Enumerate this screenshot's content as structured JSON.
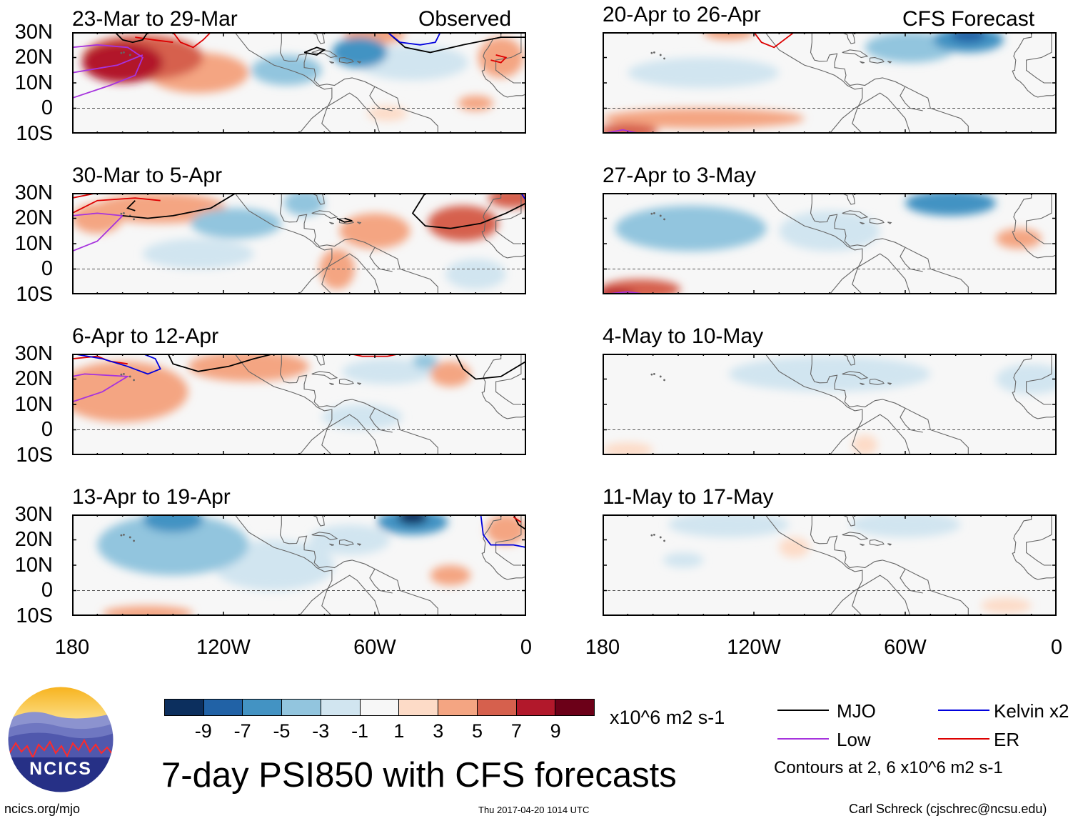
{
  "header": {
    "observed_label": "Observed",
    "forecast_label": "CFS Forecast"
  },
  "lat_labels": [
    "30N",
    "20N",
    "10N",
    "0",
    "10S"
  ],
  "lon_labels": [
    "180",
    "120W",
    "60W",
    "0"
  ],
  "panels": [
    {
      "title": "23-Mar to 29-Mar",
      "type": "observed",
      "anomalies": [
        {
          "lon": -152,
          "lat": 20,
          "sx": 24,
          "sy": 9,
          "v": 5
        },
        {
          "lon": -160,
          "lat": 18,
          "sx": 16,
          "sy": 8,
          "v": 7
        },
        {
          "lon": -130,
          "lat": 14,
          "sx": 20,
          "sy": 8,
          "v": 3
        },
        {
          "lon": -95,
          "lat": 15,
          "sx": 14,
          "sy": 6,
          "v": -3
        },
        {
          "lon": -66,
          "lat": 22,
          "sx": 11,
          "sy": 6,
          "v": -5
        },
        {
          "lon": -45,
          "lat": 18,
          "sx": 22,
          "sy": 7,
          "v": -1
        },
        {
          "lon": -60,
          "lat": 29,
          "sx": 12,
          "sy": 4,
          "v": 3
        },
        {
          "lon": -10,
          "lat": 20,
          "sx": 9,
          "sy": 8,
          "v": 3
        },
        {
          "lon": -20,
          "lat": 2,
          "sx": 7,
          "sy": 3,
          "v": 3
        },
        {
          "lon": -55,
          "lat": -2,
          "sx": 8,
          "sy": 3,
          "v": 1.5
        }
      ]
    },
    {
      "title": "30-Mar to 5-Apr",
      "type": "observed",
      "anomalies": [
        {
          "lon": -145,
          "lat": 24,
          "sx": 26,
          "sy": 6,
          "v": 3
        },
        {
          "lon": -170,
          "lat": 20,
          "sx": 10,
          "sy": 6,
          "v": 3
        },
        {
          "lon": -115,
          "lat": 18,
          "sx": 18,
          "sy": 6,
          "v": -3
        },
        {
          "lon": -130,
          "lat": 6,
          "sx": 22,
          "sy": 6,
          "v": -1
        },
        {
          "lon": -60,
          "lat": 15,
          "sx": 14,
          "sy": 7,
          "v": 3
        },
        {
          "lon": -25,
          "lat": 18,
          "sx": 14,
          "sy": 7,
          "v": 5
        },
        {
          "lon": -88,
          "lat": 26,
          "sx": 8,
          "sy": 5,
          "v": -3
        },
        {
          "lon": -75,
          "lat": 0,
          "sx": 7,
          "sy": 8,
          "v": 3
        },
        {
          "lon": -20,
          "lat": -2,
          "sx": 12,
          "sy": 6,
          "v": -1
        },
        {
          "lon": -5,
          "lat": 28,
          "sx": 10,
          "sy": 4,
          "v": 5
        }
      ]
    },
    {
      "title": "6-Apr to 12-Apr",
      "type": "observed",
      "anomalies": [
        {
          "lon": -160,
          "lat": 15,
          "sx": 26,
          "sy": 12,
          "v": 3
        },
        {
          "lon": -110,
          "lat": 25,
          "sx": 24,
          "sy": 6,
          "v": 3
        },
        {
          "lon": -30,
          "lat": 22,
          "sx": 8,
          "sy": 5,
          "v": 3
        },
        {
          "lon": -55,
          "lat": 23,
          "sx": 18,
          "sy": 5,
          "v": -1
        },
        {
          "lon": -65,
          "lat": 5,
          "sx": 16,
          "sy": 5,
          "v": -1
        },
        {
          "lon": -40,
          "lat": 27,
          "sx": 5,
          "sy": 3,
          "v": -3
        }
      ]
    },
    {
      "title": "13-Apr to 19-Apr",
      "type": "observed",
      "anomalies": [
        {
          "lon": -140,
          "lat": 18,
          "sx": 30,
          "sy": 12,
          "v": -3
        },
        {
          "lon": -140,
          "lat": 28,
          "sx": 12,
          "sy": 5,
          "v": -6
        },
        {
          "lon": -45,
          "lat": 27,
          "sx": 14,
          "sy": 5,
          "v": -6
        },
        {
          "lon": -45,
          "lat": 29,
          "sx": 6,
          "sy": 3,
          "v": -9
        },
        {
          "lon": -100,
          "lat": 10,
          "sx": 24,
          "sy": 10,
          "v": -1
        },
        {
          "lon": -70,
          "lat": 20,
          "sx": 16,
          "sy": 6,
          "v": -1
        },
        {
          "lon": -8,
          "lat": 24,
          "sx": 8,
          "sy": 6,
          "v": 3
        },
        {
          "lon": -30,
          "lat": 6,
          "sx": 8,
          "sy": 4,
          "v": 3
        },
        {
          "lon": -150,
          "lat": -9,
          "sx": 18,
          "sy": 3,
          "v": 3
        }
      ]
    },
    {
      "title": "20-Apr to 26-Apr",
      "type": "forecast",
      "anomalies": [
        {
          "lon": -58,
          "lat": 24,
          "sx": 18,
          "sy": 6,
          "v": -3
        },
        {
          "lon": -35,
          "lat": 27,
          "sx": 14,
          "sy": 5,
          "v": -5
        },
        {
          "lon": -35,
          "lat": 29,
          "sx": 7,
          "sy": 3,
          "v": -8
        },
        {
          "lon": -140,
          "lat": 14,
          "sx": 30,
          "sy": 6,
          "v": -1
        },
        {
          "lon": -140,
          "lat": -4,
          "sx": 40,
          "sy": 4,
          "v": 3
        },
        {
          "lon": -170,
          "lat": -9,
          "sx": 12,
          "sy": 3,
          "v": 5
        },
        {
          "lon": -130,
          "lat": 30,
          "sx": 10,
          "sy": 3,
          "v": 3
        }
      ]
    },
    {
      "title": "27-Apr to 3-May",
      "type": "forecast",
      "anomalies": [
        {
          "lon": -145,
          "lat": 16,
          "sx": 30,
          "sy": 9,
          "v": -3
        },
        {
          "lon": -42,
          "lat": 26,
          "sx": 18,
          "sy": 5,
          "v": -5
        },
        {
          "lon": -90,
          "lat": 15,
          "sx": 20,
          "sy": 8,
          "v": -1
        },
        {
          "lon": -165,
          "lat": -8,
          "sx": 16,
          "sy": 4,
          "v": 5
        },
        {
          "lon": -175,
          "lat": -10,
          "sx": 8,
          "sy": 2,
          "v": 8
        },
        {
          "lon": -15,
          "lat": 12,
          "sx": 9,
          "sy": 4,
          "v": 3
        }
      ]
    },
    {
      "title": "4-May to 10-May",
      "type": "forecast",
      "anomalies": [
        {
          "lon": -90,
          "lat": 22,
          "sx": 40,
          "sy": 7,
          "v": -1
        },
        {
          "lon": -10,
          "lat": 20,
          "sx": 14,
          "sy": 6,
          "v": -1
        },
        {
          "lon": -170,
          "lat": -8,
          "sx": 10,
          "sy": 3,
          "v": 1.5
        },
        {
          "lon": -76,
          "lat": -6,
          "sx": 5,
          "sy": 4,
          "v": 1.5
        }
      ]
    },
    {
      "title": "11-May to 17-May",
      "type": "forecast",
      "anomalies": [
        {
          "lon": -60,
          "lat": 26,
          "sx": 22,
          "sy": 5,
          "v": -1
        },
        {
          "lon": -130,
          "lat": 26,
          "sx": 24,
          "sy": 5,
          "v": -1
        },
        {
          "lon": -148,
          "lat": 12,
          "sx": 8,
          "sy": 3,
          "v": -1
        },
        {
          "lon": -104,
          "lat": 17,
          "sx": 6,
          "sy": 4,
          "v": 1.5
        },
        {
          "lon": -20,
          "lat": -6,
          "sx": 10,
          "sy": 3,
          "v": 1.5
        }
      ]
    }
  ],
  "colorbar": {
    "colors": [
      "#0c2f5e",
      "#2162a6",
      "#4393c3",
      "#92c5de",
      "#d1e5f0",
      "#f7f7f7",
      "#fddbc7",
      "#f4a582",
      "#d6604d",
      "#b2182b",
      "#6c0018"
    ],
    "labels": [
      "-9",
      "-7",
      "-5",
      "-3",
      "-1",
      "1",
      "3",
      "5",
      "7",
      "9"
    ],
    "units": "x10^6 m2 s-1"
  },
  "main_title": "7-day PSI850 with CFS forecasts",
  "legend": {
    "items": [
      {
        "label": "MJO",
        "color": "#000000"
      },
      {
        "label": "Kelvin x2",
        "color": "#0000dd"
      },
      {
        "label": "Low",
        "color": "#a633dd"
      },
      {
        "label": "ER",
        "color": "#dd0000"
      }
    ],
    "contour_note": "Contours at 2, 6 x10^6 m2 s-1"
  },
  "logo": {
    "text": "NCICS"
  },
  "footer": {
    "url": "ncics.org/mjo",
    "timestamp": "Thu 2017-04-20 1014 UTC",
    "author": "Carl Schreck (cjschrec@ncsu.edu)"
  }
}
